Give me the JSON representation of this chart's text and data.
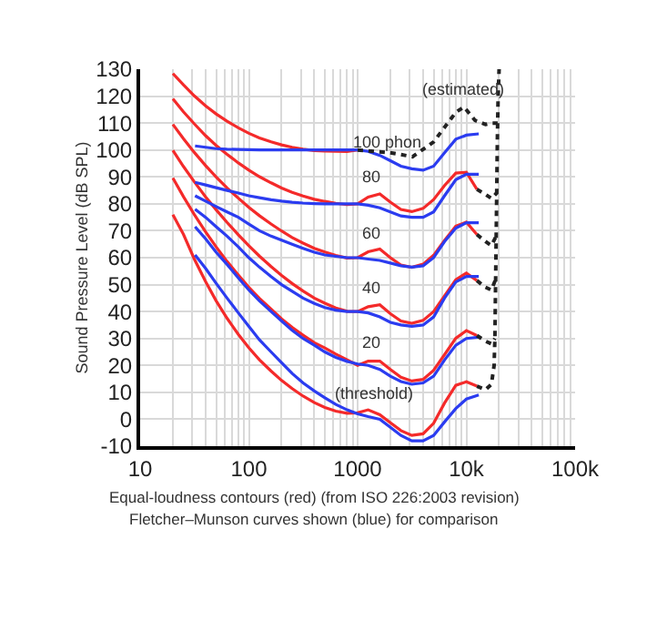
{
  "chart_data": {
    "type": "line",
    "ylabel": "Sound Pressure Level (dB SPL)",
    "log": "x",
    "grid": true,
    "line_style": "solid",
    "xlim": [
      10,
      100000
    ],
    "ylim": [
      -10,
      130
    ],
    "xticks": [
      10,
      {
        "value": 20,
        "label": null
      },
      {
        "value": 30,
        "label": null
      },
      {
        "value": 40,
        "label": null
      },
      {
        "value": 50,
        "label": null
      },
      {
        "value": 60,
        "label": null
      },
      {
        "value": 70,
        "label": null
      },
      {
        "value": 80,
        "label": null
      },
      {
        "value": 90,
        "label": null
      },
      100,
      {
        "value": 200,
        "label": null
      },
      {
        "value": 300,
        "label": null
      },
      {
        "value": 400,
        "label": null
      },
      {
        "value": 500,
        "label": null
      },
      {
        "value": 600,
        "label": null
      },
      {
        "value": 700,
        "label": null
      },
      {
        "value": 800,
        "label": null
      },
      {
        "value": 900,
        "label": null
      },
      1000,
      {
        "value": 2000,
        "label": null
      },
      {
        "value": 3000,
        "label": null
      },
      {
        "value": 4000,
        "label": null
      },
      {
        "value": 5000,
        "label": null
      },
      {
        "value": 6000,
        "label": null
      },
      {
        "value": 7000,
        "label": null
      },
      {
        "value": 8000,
        "label": null
      },
      {
        "value": 9000,
        "label": null
      },
      {
        "value": 10000,
        "label": "10k"
      },
      {
        "value": 20000,
        "label": null
      },
      {
        "value": 30000,
        "label": null
      },
      {
        "value": 40000,
        "label": null
      },
      {
        "value": 50000,
        "label": null
      },
      {
        "value": 60000,
        "label": null
      },
      {
        "value": 70000,
        "label": null
      },
      {
        "value": 80000,
        "label": null
      },
      {
        "value": 90000,
        "label": null
      },
      {
        "value": 100000,
        "label": "100k"
      }
    ],
    "yticks": [
      -10,
      0,
      10,
      20,
      30,
      40,
      50,
      60,
      70,
      80,
      90,
      100,
      110,
      120,
      130
    ],
    "x": [
      20,
      25,
      31.5,
      40,
      50,
      63,
      80,
      100,
      125,
      160,
      200,
      250,
      315,
      400,
      500,
      630,
      800,
      1000,
      1250,
      1600,
      2000,
      2500,
      3150,
      4000,
      5000,
      6300,
      8000,
      10000,
      12500
    ],
    "series": [
      {
        "color": "#f42a2a",
        "values": [
          76,
          68.7,
          59.5,
          51.1,
          44.0,
          37.5,
          31.5,
          26.5,
          22.1,
          17.9,
          14.4,
          11.4,
          8.6,
          6.2,
          4.4,
          3.0,
          2.2,
          2.4,
          3.5,
          1.7,
          -1.3,
          -4.2,
          -6.0,
          -5.4,
          -1.5,
          6.0,
          12.6,
          13.9,
          12.3
        ]
      },
      {
        "color": "#f42a2a",
        "values": [
          89.6,
          82.7,
          76.0,
          69.6,
          64.0,
          58.6,
          53.6,
          49.0,
          44.9,
          40.9,
          37.3,
          34.1,
          31.2,
          28.4,
          26.5,
          24.2,
          22.1,
          20.0,
          21.6,
          21.6,
          18.5,
          15.6,
          14.2,
          14.8,
          18.2,
          24.0,
          30.1,
          32.9,
          31.1
        ]
      },
      {
        "color": "#f42a2a",
        "values": [
          99.9,
          93.9,
          88.2,
          82.6,
          77.8,
          73.1,
          68.5,
          64.4,
          60.6,
          56.7,
          53.4,
          50.4,
          47.6,
          45.0,
          43.1,
          41.3,
          40.1,
          40.0,
          41.8,
          42.5,
          39.2,
          36.5,
          35.6,
          36.7,
          40.0,
          45.8,
          51.8,
          54.3,
          51.5
        ]
      },
      {
        "color": "#f42a2a",
        "values": [
          109.5,
          104.2,
          99.1,
          94.2,
          90.0,
          85.9,
          82.1,
          78.7,
          75.6,
          72.5,
          69.9,
          67.5,
          65.4,
          63.5,
          62.1,
          60.8,
          59.9,
          60.0,
          62.2,
          63.2,
          60.0,
          57.3,
          56.4,
          57.6,
          60.9,
          66.4,
          71.7,
          73.2,
          68.6
        ]
      },
      {
        "color": "#f42a2a",
        "values": [
          119.0,
          114.2,
          109.7,
          105.3,
          101.7,
          98.4,
          95.2,
          92.5,
          90.1,
          87.8,
          85.9,
          84.3,
          82.9,
          81.7,
          80.9,
          80.2,
          79.7,
          80.0,
          82.5,
          83.7,
          80.6,
          77.9,
          77.1,
          78.3,
          81.6,
          86.8,
          91.4,
          91.7,
          85.4
        ]
      },
      {
        "color": "#f42a2a",
        "x": [
          20,
          25,
          31.5,
          40,
          50,
          63,
          80,
          100,
          125,
          160,
          200,
          250,
          315,
          400,
          500,
          630,
          800,
          1000
        ],
        "values": [
          128.4,
          124.2,
          120.1,
          116.4,
          113.4,
          110.7,
          108.2,
          106.2,
          104.5,
          103.0,
          101.9,
          101.0,
          100.3,
          99.8,
          99.6,
          99.5,
          99.4,
          100.0
        ]
      },
      {
        "color": "#2b3cf0",
        "x": [
          32,
          40,
          50,
          63,
          80,
          100,
          125,
          160,
          200,
          250,
          315,
          400,
          500,
          630,
          800,
          1000,
          1250,
          1600,
          2000,
          2500,
          3150,
          4000,
          5000,
          6300,
          8000,
          10000,
          13000
        ],
        "values": [
          61,
          56,
          50.5,
          45,
          39.5,
          34.5,
          29.5,
          25,
          21,
          17,
          13.5,
          10.5,
          8,
          5.5,
          3.5,
          2,
          1,
          0,
          -3,
          -6,
          -8,
          -8,
          -6,
          -1,
          4,
          7.5,
          9
        ]
      },
      {
        "color": "#2b3cf0",
        "x": [
          32,
          40,
          50,
          63,
          80,
          100,
          125,
          160,
          200,
          250,
          315,
          400,
          500,
          630,
          800,
          1000,
          1250,
          1600,
          2000,
          2500,
          3150,
          4000,
          5000,
          6300,
          8000,
          10000,
          13000
        ],
        "values": [
          71.5,
          67,
          62,
          57.5,
          52.5,
          48,
          44,
          40,
          36.5,
          33,
          30,
          27.5,
          25,
          23,
          21.5,
          20.5,
          20,
          18.5,
          16,
          14,
          13,
          13.5,
          16,
          22,
          27.5,
          30,
          30.5
        ]
      },
      {
        "color": "#2b3cf0",
        "x": [
          32,
          40,
          50,
          63,
          80,
          100,
          125,
          160,
          200,
          250,
          315,
          400,
          500,
          630,
          800,
          1000,
          1250,
          1600,
          2000,
          2500,
          3150,
          4000,
          5000,
          6300,
          8000,
          10000,
          13000
        ],
        "values": [
          78,
          75,
          71.5,
          68,
          64,
          60,
          56.5,
          53,
          50,
          47.5,
          45,
          43,
          41.5,
          40.5,
          40,
          40,
          39.5,
          38,
          36,
          35,
          34.5,
          35,
          38,
          45,
          51,
          53,
          53
        ]
      },
      {
        "color": "#2b3cf0",
        "x": [
          32,
          40,
          50,
          63,
          80,
          100,
          125,
          160,
          200,
          250,
          315,
          400,
          500,
          630,
          800,
          1000,
          1250,
          1600,
          2000,
          2500,
          3150,
          4000,
          5000,
          6300,
          8000,
          10000,
          13000
        ],
        "values": [
          83,
          81,
          79,
          77,
          75,
          72.5,
          70,
          68,
          66.5,
          65,
          63.5,
          62,
          61,
          60.5,
          60,
          60,
          59.5,
          59,
          58,
          57,
          56.5,
          57,
          60,
          66,
          71,
          73,
          73
        ]
      },
      {
        "color": "#2b3cf0",
        "x": [
          32,
          40,
          50,
          63,
          80,
          100,
          125,
          160,
          200,
          250,
          315,
          400,
          500,
          630,
          800,
          1000,
          1250,
          1600,
          2000,
          2500,
          3150,
          4000,
          5000,
          6300,
          8000,
          10000,
          13000
        ],
        "values": [
          88,
          87,
          86,
          85,
          84,
          83,
          82.3,
          81.5,
          81,
          80.6,
          80.3,
          80.1,
          80,
          80,
          80,
          80,
          79.5,
          78.5,
          77,
          75.5,
          75,
          75,
          77,
          83,
          89,
          91,
          91
        ]
      },
      {
        "color": "#2b3cf0",
        "x": [
          32,
          40,
          50,
          63,
          80,
          100,
          125,
          160,
          200,
          250,
          315,
          400,
          500,
          630,
          800,
          1000,
          1250,
          1600,
          2000,
          2500,
          3150,
          4000,
          5000,
          6300,
          8000,
          10000,
          13000
        ],
        "values": [
          101.5,
          101,
          100.5,
          100.3,
          100.2,
          100.1,
          100,
          100,
          100,
          100,
          100,
          100,
          100,
          100,
          100,
          100,
          99.5,
          98,
          96,
          94,
          93,
          92.5,
          94,
          99,
          104,
          105.5,
          106
        ]
      },
      {
        "color": "#222222",
        "line_style": "dotted",
        "x": [
          1000,
          2000,
          3200,
          5000,
          8000,
          9500,
          12000,
          15000,
          17000,
          19400
        ],
        "values": [
          100,
          99,
          97.5,
          103,
          114,
          116,
          111,
          109.5,
          110,
          110
        ]
      },
      {
        "color": "#222222",
        "line_style": "dotted",
        "x": [
          12500,
          15000,
          17000,
          18000,
          18300,
          18500,
          18700,
          18900,
          19100,
          19300,
          19600,
          20000
        ],
        "values": [
          12.3,
          11,
          13,
          20,
          30,
          45,
          60,
          75,
          90,
          105,
          120,
          130
        ]
      },
      {
        "color": "#222222",
        "line_style": "dotted",
        "x": [
          12500,
          15000,
          17000,
          18300,
          null,
          12500,
          15000,
          17000,
          18600,
          null,
          12500,
          15000,
          17000,
          18800,
          null,
          12500,
          15000,
          17000,
          19000
        ],
        "values": [
          31.1,
          29,
          28,
          30,
          null,
          51.5,
          49,
          48,
          52,
          null,
          68.6,
          66,
          64.5,
          68,
          null,
          85.4,
          83.5,
          82,
          84
        ]
      }
    ],
    "annotations": [
      {
        "text": "100 phon",
        "x": 1900,
        "y": 96.5
      },
      {
        "text": "80",
        "x": 1330,
        "y": 83
      },
      {
        "text": "60",
        "x": 1330,
        "y": 62.4
      },
      {
        "text": "40",
        "x": 1330,
        "y": 42
      },
      {
        "text": "20",
        "x": 1330,
        "y": 21.6
      },
      {
        "text": "(threshold)",
        "x": 1400,
        "y": 3
      },
      {
        "text": "(estimated)",
        "x": 9500,
        "y": 116
      },
      "Equal-loudness contours (red) (from ISO 226:2003 revision)",
      "Fletcher–Munson curves shown (blue) for comparison"
    ]
  }
}
